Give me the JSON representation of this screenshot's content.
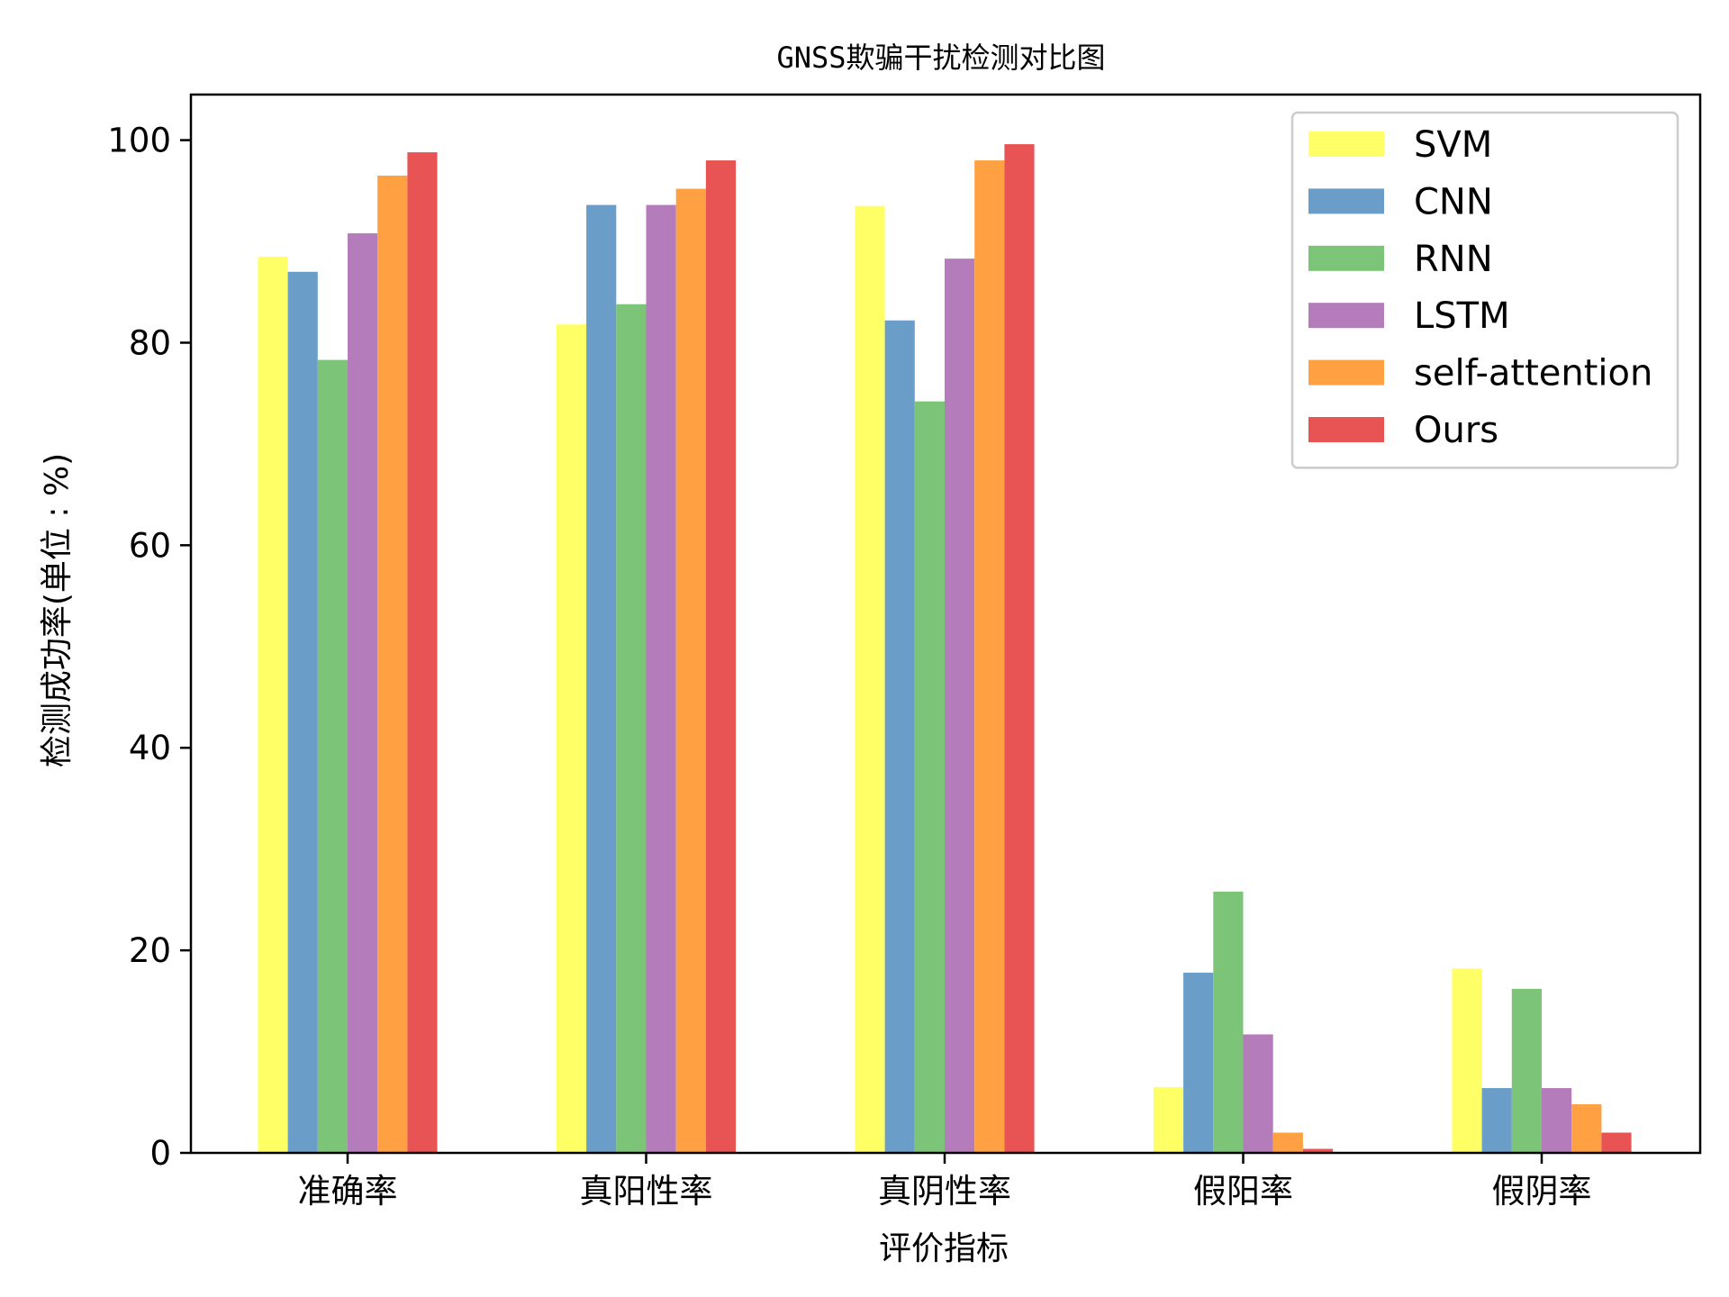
{
  "chart_data": {
    "type": "bar",
    "title": "GNSS欺骗干扰检测对比图",
    "xlabel": "评价指标",
    "ylabel": "检测成功率(单位 : %)",
    "categories": [
      "准确率",
      "真阳性率",
      "真阴性率",
      "假阳率",
      "假阴率"
    ],
    "ylim": [
      0,
      104.5
    ],
    "yticks": [
      0,
      20,
      40,
      60,
      80,
      100
    ],
    "grid": false,
    "legend_position": "top-right",
    "series": [
      {
        "name": "SVM",
        "color": "#ffff66",
        "values": [
          88.5,
          81.8,
          93.5,
          6.5,
          18.2
        ]
      },
      {
        "name": "CNN",
        "color": "#6a9ec8",
        "values": [
          87.0,
          93.6,
          82.2,
          17.8,
          6.4
        ]
      },
      {
        "name": "RNN",
        "color": "#7cc477",
        "values": [
          78.3,
          83.8,
          74.2,
          25.8,
          16.2
        ]
      },
      {
        "name": "LSTM",
        "color": "#b57cbb",
        "values": [
          90.8,
          93.6,
          88.3,
          11.7,
          6.4
        ]
      },
      {
        "name": "self-attention",
        "color": "#ffa042",
        "values": [
          96.5,
          95.2,
          98.0,
          2.0,
          4.8
        ]
      },
      {
        "name": "Ours",
        "color": "#e85454",
        "values": [
          98.8,
          98.0,
          99.6,
          0.4,
          2.0
        ]
      }
    ]
  }
}
